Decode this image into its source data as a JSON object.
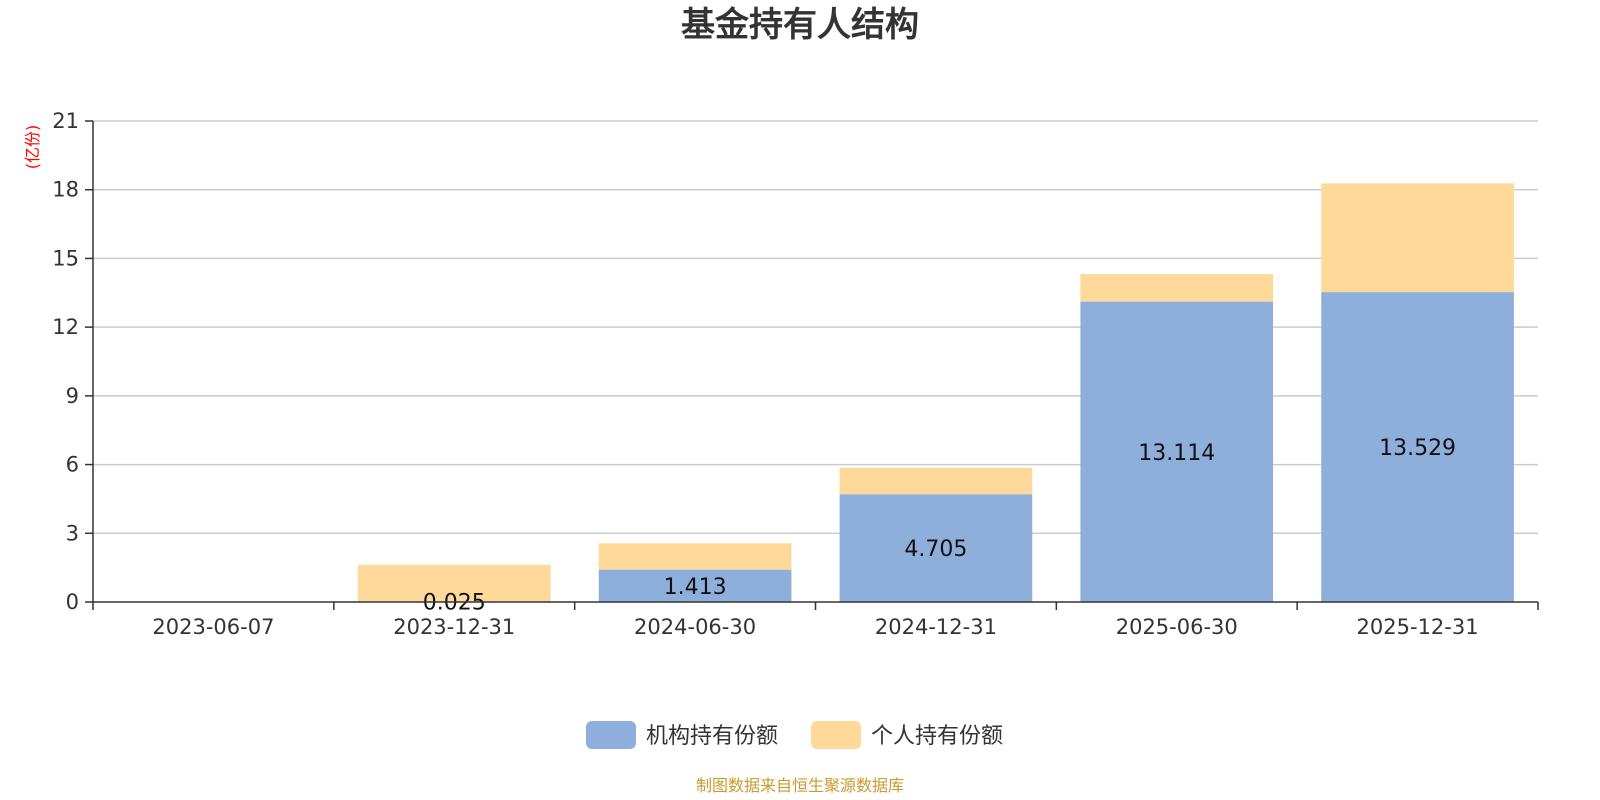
{
  "chart_data": {
    "type": "bar",
    "stacked": true,
    "title": "基金持有人结构",
    "unit": "(亿份)",
    "categories": [
      "2023-06-07",
      "2023-12-31",
      "2024-06-30",
      "2024-12-31",
      "2025-06-30",
      "2025-12-31"
    ],
    "series": [
      {
        "name": "机构持有份额",
        "color": "#8eaedb",
        "values": [
          0,
          0.025,
          1.413,
          4.705,
          13.114,
          13.529
        ]
      },
      {
        "name": "个人持有份额",
        "color": "#fed99a",
        "values": [
          0,
          1.6,
          1.15,
          1.15,
          1.2,
          4.75
        ]
      }
    ],
    "data_labels": [
      "",
      "0.025",
      "1.413",
      "4.705",
      "13.114",
      "13.529"
    ],
    "ylim": [
      0,
      21
    ],
    "yticks": [
      0,
      3,
      6,
      9,
      12,
      15,
      18,
      21
    ],
    "grid": true,
    "legend_position": "bottom-center"
  },
  "source": "制图数据来自恒生聚源数据库",
  "colors": {
    "source": "#c99a2e",
    "unit": "#ff0000",
    "grid": "#cccccc",
    "axis": "#333333"
  }
}
